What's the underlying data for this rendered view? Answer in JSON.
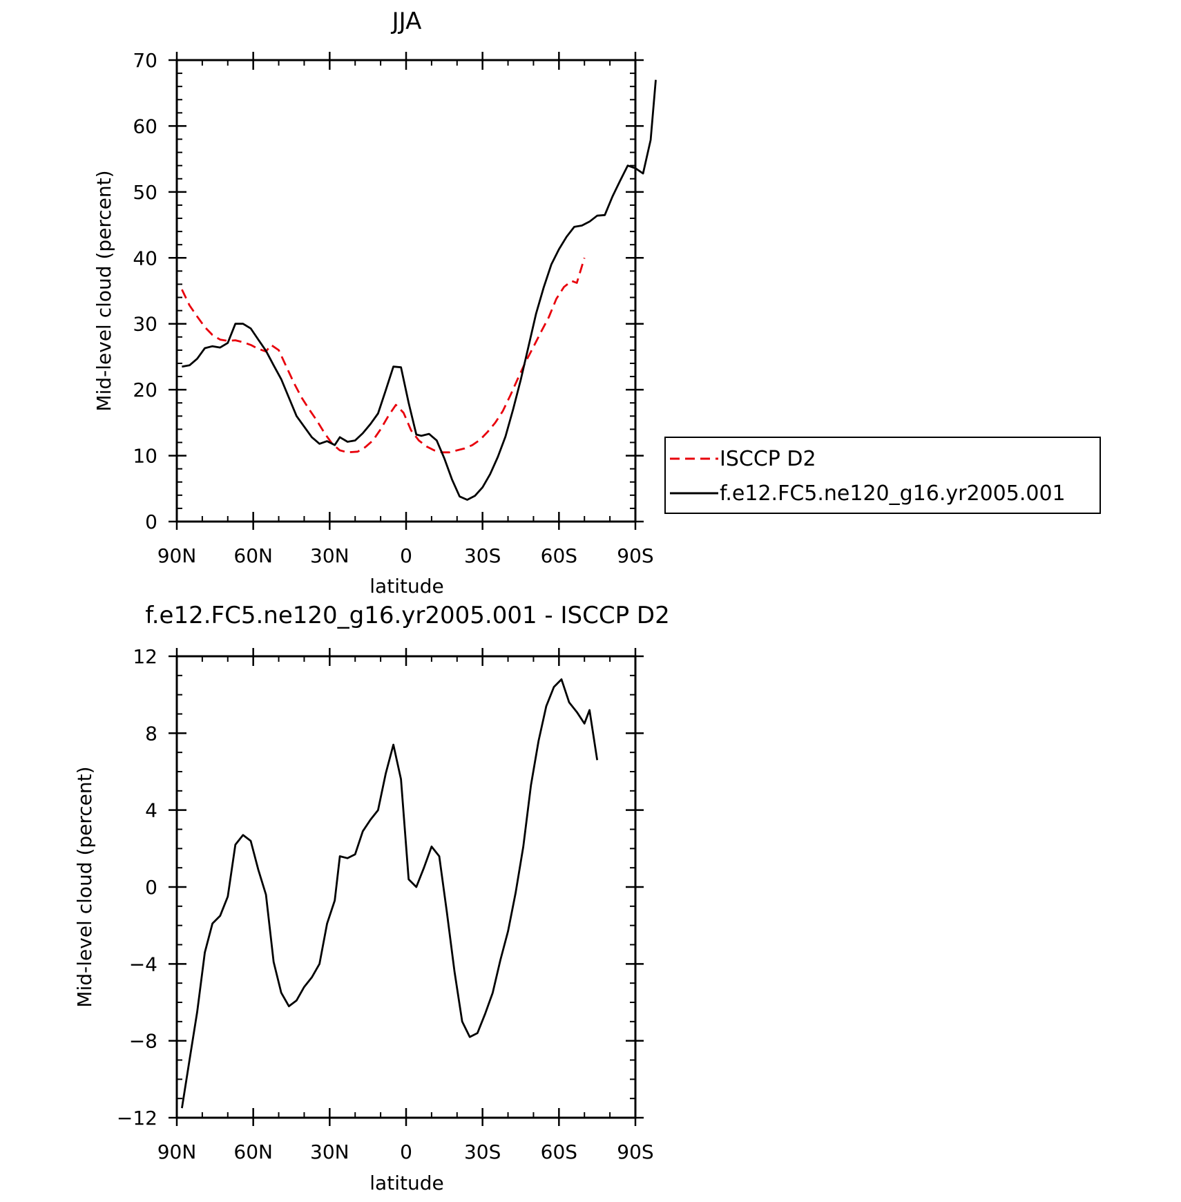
{
  "chart_data": [
    {
      "type": "line",
      "title": "JJA",
      "xlabel": "latitude",
      "ylabel": "Mid-level cloud (percent)",
      "xlim": [
        90,
        -90
      ],
      "ylim": [
        0,
        70
      ],
      "xticks": [
        90,
        60,
        30,
        0,
        -30,
        -60,
        -90
      ],
      "xtick_labels": [
        "90N",
        "60N",
        "30N",
        "0",
        "30S",
        "60S",
        "90S"
      ],
      "yticks": [
        0,
        10,
        20,
        30,
        40,
        50,
        60,
        70
      ],
      "ytick_labels": [
        "0",
        "10",
        "20",
        "30",
        "40",
        "50",
        "60",
        "70"
      ],
      "legend": "outside-right",
      "series": [
        {
          "name": "ISCCP D2",
          "color": "#e8000b",
          "style": "dashed",
          "points": [
            [
              88,
              35.2
            ],
            [
              85,
              32.8
            ],
            [
              82,
              31.1
            ],
            [
              79,
              29.5
            ],
            [
              76,
              28.3
            ],
            [
              73,
              27.6
            ],
            [
              70,
              27.4
            ],
            [
              67,
              27.5
            ],
            [
              64,
              27.2
            ],
            [
              61,
              26.8
            ],
            [
              58,
              26.2
            ],
            [
              55,
              25.8
            ],
            [
              53,
              26.8
            ],
            [
              50,
              26.0
            ],
            [
              47,
              23.5
            ],
            [
              44,
              21.0
            ],
            [
              41,
              18.8
            ],
            [
              38,
              17.0
            ],
            [
              35,
              15.3
            ],
            [
              32,
              13.4
            ],
            [
              29,
              11.8
            ],
            [
              26,
              10.8
            ],
            [
              23,
              10.5
            ],
            [
              19,
              10.6
            ],
            [
              16,
              11.3
            ],
            [
              13,
              12.3
            ],
            [
              10,
              14.0
            ],
            [
              7,
              16.0
            ],
            [
              4,
              17.7
            ],
            [
              1,
              16.5
            ],
            [
              -2,
              13.8
            ],
            [
              -5,
              12.3
            ],
            [
              -8,
              11.4
            ],
            [
              -11,
              10.8
            ],
            [
              -14,
              10.5
            ],
            [
              -17,
              10.5
            ],
            [
              -20,
              10.8
            ],
            [
              -23,
              11.1
            ],
            [
              -26,
              11.6
            ],
            [
              -29,
              12.4
            ],
            [
              -32,
              13.6
            ],
            [
              -35,
              15.0
            ],
            [
              -38,
              16.8
            ],
            [
              -41,
              19.2
            ],
            [
              -44,
              21.8
            ],
            [
              -47,
              24.3
            ],
            [
              -50,
              26.5
            ],
            [
              -53,
              28.8
            ],
            [
              -56,
              31.0
            ],
            [
              -59,
              33.8
            ],
            [
              -62,
              35.6
            ],
            [
              -65,
              36.5
            ],
            [
              -67,
              36.2
            ],
            [
              -70,
              40.0
            ]
          ]
        },
        {
          "name": "f.e12.FC5.ne120_g16.yr2005.001",
          "color": "#000000",
          "style": "solid",
          "points": [
            [
              88,
              23.5
            ],
            [
              85,
              23.7
            ],
            [
              82,
              24.7
            ],
            [
              79,
              26.3
            ],
            [
              76,
              26.6
            ],
            [
              73,
              26.4
            ],
            [
              70,
              27.1
            ],
            [
              67,
              30.0
            ],
            [
              64,
              30.0
            ],
            [
              61,
              29.3
            ],
            [
              58,
              27.6
            ],
            [
              55,
              25.9
            ],
            [
              52,
              23.7
            ],
            [
              49,
              21.6
            ],
            [
              46,
              18.8
            ],
            [
              43,
              16.0
            ],
            [
              40,
              14.4
            ],
            [
              37,
              12.8
            ],
            [
              34,
              11.8
            ],
            [
              31,
              12.2
            ],
            [
              28,
              11.6
            ],
            [
              26,
              12.8
            ],
            [
              23,
              12.1
            ],
            [
              20,
              12.3
            ],
            [
              17,
              13.4
            ],
            [
              14,
              14.8
            ],
            [
              11,
              16.4
            ],
            [
              8,
              19.9
            ],
            [
              5,
              23.5
            ],
            [
              2,
              23.4
            ],
            [
              -1,
              18.0
            ],
            [
              -4,
              13.2
            ],
            [
              -6,
              13.0
            ],
            [
              -9,
              13.3
            ],
            [
              -12,
              12.3
            ],
            [
              -15,
              9.6
            ],
            [
              -18,
              6.4
            ],
            [
              -21,
              3.8
            ],
            [
              -24,
              3.3
            ],
            [
              -27,
              3.9
            ],
            [
              -30,
              5.2
            ],
            [
              -33,
              7.2
            ],
            [
              -36,
              9.8
            ],
            [
              -39,
              12.9
            ],
            [
              -42,
              17.0
            ],
            [
              -45,
              21.5
            ],
            [
              -48,
              26.5
            ],
            [
              -51,
              31.5
            ],
            [
              -54,
              35.5
            ],
            [
              -57,
              39.0
            ],
            [
              -60,
              41.3
            ],
            [
              -63,
              43.2
            ],
            [
              -66,
              44.7
            ],
            [
              -69,
              44.9
            ],
            [
              -72,
              45.5
            ],
            [
              -75,
              46.4
            ],
            [
              -78,
              46.5
            ],
            [
              -81,
              49.3
            ],
            [
              -84,
              51.7
            ],
            [
              -87,
              54.0
            ],
            [
              -90,
              53.6
            ],
            [
              -93,
              52.8
            ],
            [
              -96,
              57.9
            ],
            [
              -98,
              67.0
            ]
          ]
        }
      ]
    },
    {
      "type": "line",
      "title": "f.e12.FC5.ne120_g16.yr2005.001 - ISCCP D2",
      "xlabel": "latitude",
      "ylabel": "Mid-level cloud (percent)",
      "xlim": [
        90,
        -90
      ],
      "ylim": [
        -12,
        12
      ],
      "xticks": [
        90,
        60,
        30,
        0,
        -30,
        -60,
        -90
      ],
      "xtick_labels": [
        "90N",
        "60N",
        "30N",
        "0",
        "30S",
        "60S",
        "90S"
      ],
      "yticks": [
        -12,
        -8,
        -4,
        0,
        4,
        8,
        12
      ],
      "ytick_labels": [
        "−12",
        "−8",
        "−4",
        "0",
        "4",
        "8",
        "12"
      ],
      "series": [
        {
          "color": "#000000",
          "style": "solid",
          "points": [
            [
              88,
              -11.5
            ],
            [
              85,
              -9.0
            ],
            [
              82,
              -6.5
            ],
            [
              79,
              -3.4
            ],
            [
              76,
              -1.9
            ],
            [
              73,
              -1.5
            ],
            [
              70,
              -0.5
            ],
            [
              67,
              2.2
            ],
            [
              64,
              2.7
            ],
            [
              61,
              2.4
            ],
            [
              58,
              0.9
            ],
            [
              55,
              -0.4
            ],
            [
              52,
              -3.9
            ],
            [
              49,
              -5.5
            ],
            [
              46,
              -6.2
            ],
            [
              43,
              -5.9
            ],
            [
              40,
              -5.2
            ],
            [
              37,
              -4.7
            ],
            [
              34,
              -4.0
            ],
            [
              31,
              -1.9
            ],
            [
              28,
              -0.7
            ],
            [
              26,
              1.6
            ],
            [
              23,
              1.5
            ],
            [
              20,
              1.7
            ],
            [
              17,
              2.9
            ],
            [
              14,
              3.5
            ],
            [
              11,
              4.0
            ],
            [
              8,
              5.9
            ],
            [
              5,
              7.4
            ],
            [
              2,
              5.6
            ],
            [
              -1,
              0.4
            ],
            [
              -4,
              0.0
            ],
            [
              -7,
              1.0
            ],
            [
              -10,
              2.1
            ],
            [
              -13,
              1.6
            ],
            [
              -16,
              -1.3
            ],
            [
              -19,
              -4.4
            ],
            [
              -22,
              -7.0
            ],
            [
              -25,
              -7.8
            ],
            [
              -28,
              -7.6
            ],
            [
              -31,
              -6.6
            ],
            [
              -34,
              -5.5
            ],
            [
              -37,
              -3.8
            ],
            [
              -40,
              -2.3
            ],
            [
              -43,
              -0.3
            ],
            [
              -46,
              2.1
            ],
            [
              -49,
              5.3
            ],
            [
              -52,
              7.6
            ],
            [
              -55,
              9.4
            ],
            [
              -58,
              10.4
            ],
            [
              -61,
              10.8
            ],
            [
              -64,
              9.6
            ],
            [
              -67,
              9.1
            ],
            [
              -70,
              8.5
            ],
            [
              -72,
              9.2
            ],
            [
              -75,
              6.6
            ]
          ]
        }
      ]
    }
  ]
}
